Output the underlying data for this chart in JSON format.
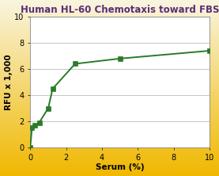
{
  "title": "Human HL-60 Chemotaxis toward FBS",
  "xlabel": "Serum (%)",
  "ylabel": "RFU x 1,000",
  "x_data": [
    0.0,
    0.1,
    0.25,
    0.5,
    1.0,
    1.25,
    2.5,
    5.0,
    10.0
  ],
  "y_data": [
    0.0,
    1.5,
    1.7,
    1.9,
    3.0,
    4.5,
    6.4,
    6.8,
    7.4
  ],
  "xlim": [
    0,
    10
  ],
  "ylim": [
    0,
    10
  ],
  "xticks": [
    0,
    2,
    4,
    6,
    8,
    10
  ],
  "yticks": [
    0,
    2,
    4,
    6,
    8,
    10
  ],
  "line_color": "#2a7a2a",
  "marker_color": "#2a7a2a",
  "bg_top": "#faf5e0",
  "bg_bottom": "#f0b800",
  "bg_plot": "#ffffff",
  "title_color": "#5b2c7a",
  "grid_color": "#bbbbbb",
  "title_fontsize": 8.5,
  "label_fontsize": 7.5,
  "tick_fontsize": 7.0
}
